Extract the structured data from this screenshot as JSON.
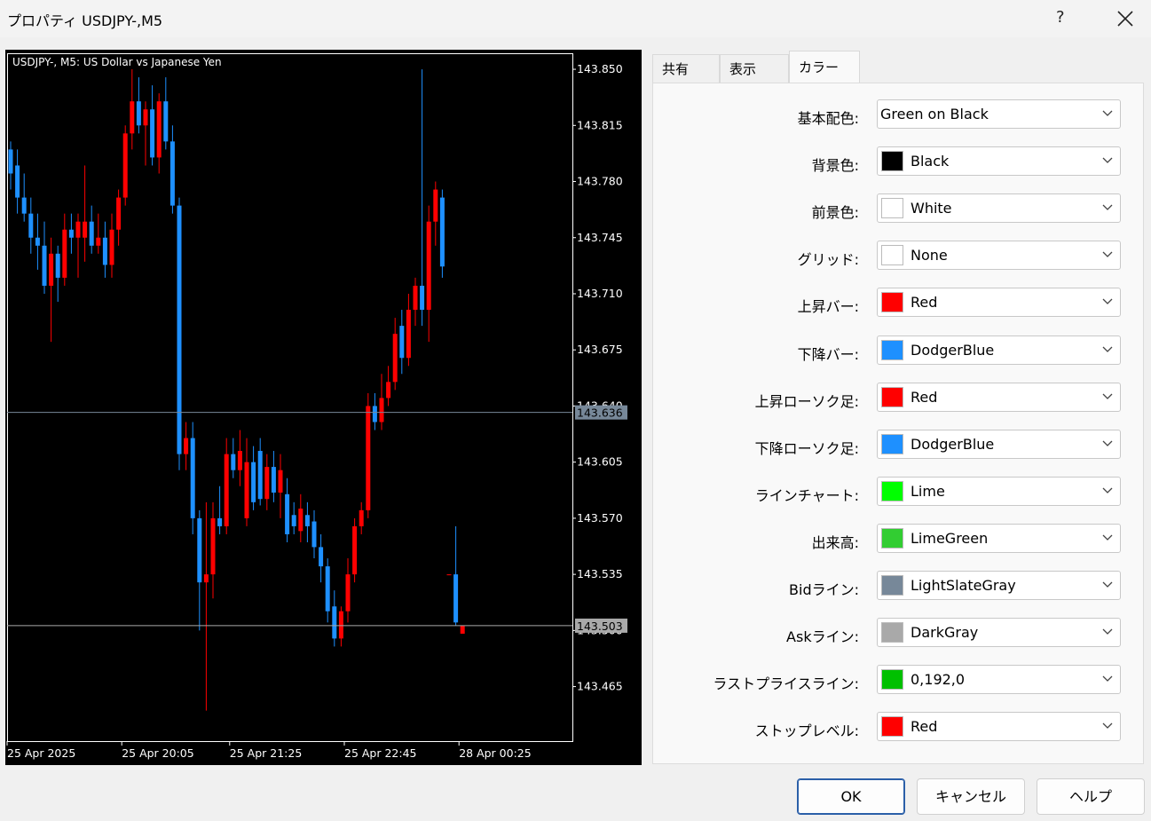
{
  "window": {
    "title": "プロパティ USDJPY-,M5",
    "help": "?"
  },
  "chart_data": {
    "type": "candlestick",
    "title": "USDJPY-, M5:  US Dollar vs Japanese Yen",
    "categories": [
      "25 Apr 2025",
      null,
      null,
      null,
      null,
      null,
      null,
      null,
      null,
      null,
      null,
      null,
      null,
      null,
      null,
      null,
      null,
      "25 Apr 20:05",
      null,
      null,
      null,
      null,
      null,
      null,
      null,
      null,
      null,
      null,
      null,
      null,
      null,
      null,
      null,
      "25 Apr 21:25",
      null,
      null,
      null,
      null,
      null,
      null,
      null,
      null,
      null,
      null,
      null,
      null,
      null,
      null,
      null,
      null,
      "25 Apr 22:45",
      null,
      null,
      null,
      null,
      null,
      null,
      null,
      null,
      null,
      null,
      null,
      null,
      null,
      null,
      null,
      null,
      "28 Apr 00:25"
    ],
    "open": [
      143.8,
      143.79,
      143.77,
      143.76,
      143.745,
      143.74,
      143.715,
      143.735,
      143.72,
      143.75,
      143.745,
      143.745,
      143.755,
      143.74,
      143.745,
      143.728,
      143.75,
      143.77,
      143.81,
      143.83,
      143.815,
      143.825,
      143.795,
      143.83,
      143.805,
      143.765,
      143.61,
      143.62,
      143.57,
      143.53,
      143.535,
      143.57,
      143.565,
      143.61,
      143.6,
      143.57,
      143.605,
      143.612,
      143.582,
      143.602,
      143.586,
      143.585,
      143.572,
      143.562,
      143.572,
      143.568,
      143.552,
      143.54,
      143.515,
      143.495,
      143.512,
      143.535,
      143.565,
      143.575,
      143.64,
      143.63,
      143.645,
      143.655,
      143.69,
      143.67,
      143.7,
      143.715,
      143.7,
      143.755,
      143.77,
      143.535,
      143.535,
      143.498
    ],
    "high": [
      143.805,
      143.8,
      143.785,
      143.77,
      143.76,
      143.755,
      143.745,
      143.74,
      143.76,
      143.76,
      143.76,
      143.79,
      143.765,
      143.76,
      143.755,
      143.76,
      143.775,
      143.815,
      143.85,
      143.845,
      143.83,
      143.84,
      143.835,
      143.845,
      143.815,
      143.77,
      143.63,
      143.63,
      143.575,
      143.58,
      143.58,
      143.59,
      143.62,
      143.62,
      143.625,
      143.62,
      143.615,
      143.62,
      143.61,
      143.612,
      143.61,
      143.595,
      143.58,
      143.585,
      143.58,
      143.575,
      143.56,
      143.545,
      143.525,
      143.515,
      143.545,
      143.57,
      143.58,
      143.648,
      143.648,
      143.66,
      143.665,
      143.695,
      143.7,
      143.71,
      143.72,
      143.85,
      143.765,
      143.78,
      143.775,
      143.535,
      143.565,
      143.503
    ],
    "low": [
      143.775,
      143.76,
      143.755,
      143.735,
      143.725,
      143.71,
      143.68,
      143.705,
      143.715,
      143.735,
      143.72,
      143.73,
      143.735,
      143.735,
      143.72,
      143.72,
      143.74,
      143.765,
      143.8,
      143.81,
      143.79,
      143.79,
      143.785,
      143.8,
      143.76,
      143.6,
      143.6,
      143.56,
      143.5,
      143.45,
      143.52,
      143.56,
      143.56,
      143.595,
      143.59,
      143.565,
      143.575,
      143.578,
      143.575,
      143.58,
      143.57,
      143.555,
      143.56,
      143.555,
      143.555,
      143.545,
      143.53,
      143.505,
      143.49,
      143.49,
      143.505,
      143.53,
      143.56,
      143.57,
      143.625,
      143.625,
      143.64,
      143.65,
      143.66,
      143.665,
      143.69,
      143.69,
      143.68,
      143.74,
      143.72,
      143.535,
      143.503,
      143.498
    ],
    "close": [
      143.785,
      143.77,
      143.76,
      143.745,
      143.74,
      143.715,
      143.735,
      143.72,
      143.75,
      143.745,
      143.755,
      143.755,
      143.74,
      143.745,
      143.728,
      143.75,
      143.77,
      143.81,
      143.83,
      143.815,
      143.825,
      143.795,
      143.83,
      143.805,
      143.765,
      143.61,
      143.62,
      143.57,
      143.53,
      143.535,
      143.57,
      143.565,
      143.61,
      143.6,
      143.612,
      143.605,
      143.58,
      143.582,
      143.602,
      143.586,
      143.6,
      143.56,
      143.565,
      143.576,
      143.565,
      143.552,
      143.54,
      143.512,
      143.495,
      143.512,
      143.535,
      143.565,
      143.575,
      143.64,
      143.63,
      143.645,
      143.655,
      143.685,
      143.67,
      143.7,
      143.715,
      143.7,
      143.755,
      143.775,
      143.727,
      143.535,
      143.505,
      143.503
    ],
    "up_color": "#ff0000",
    "down_color": "#1e90ff",
    "ylim": [
      143.431,
      143.86
    ],
    "yticks": [
      {
        "value": 143.85,
        "label": "143.850"
      },
      {
        "value": 143.815,
        "label": "143.815"
      },
      {
        "value": 143.78,
        "label": "143.780"
      },
      {
        "value": 143.745,
        "label": "143.745"
      },
      {
        "value": 143.71,
        "label": "143.710"
      },
      {
        "value": 143.675,
        "label": "143.675"
      },
      {
        "value": 143.64,
        "label": "143.640"
      },
      {
        "value": 143.605,
        "label": "143.605"
      },
      {
        "value": 143.57,
        "label": "143.570"
      },
      {
        "value": 143.535,
        "label": "143.535"
      },
      {
        "value": 143.5,
        "label": "143.500"
      },
      {
        "value": 143.465,
        "label": "143.465"
      }
    ],
    "grid": false,
    "bid": 143.636,
    "bid_color": "#778899",
    "ask": 143.503,
    "ask_color": "#a9a9a9"
  },
  "tabs": [
    {
      "label": "共有",
      "selected": false
    },
    {
      "label": "表示",
      "selected": false
    },
    {
      "label": "カラー",
      "selected": true
    }
  ],
  "rows": [
    {
      "label": "基本配色:",
      "value": "Green on Black"
    },
    {
      "label": "背景色:",
      "value": "Black",
      "swatch": "#000000"
    },
    {
      "label": "前景色:",
      "value": "White",
      "swatch": "#ffffff"
    },
    {
      "label": "グリッド:",
      "value": "None",
      "swatch": "#ffffff"
    },
    {
      "label": "上昇バー:",
      "value": "Red",
      "swatch": "#ff0000"
    },
    {
      "label": "下降バー:",
      "value": "DodgerBlue",
      "swatch": "#1e90ff"
    },
    {
      "label": "上昇ローソク足:",
      "value": "Red",
      "swatch": "#ff0000"
    },
    {
      "label": "下降ローソク足:",
      "value": "DodgerBlue",
      "swatch": "#1e90ff"
    },
    {
      "label": "ラインチャート:",
      "value": "Lime",
      "swatch": "#00ff00"
    },
    {
      "label": "出来高:",
      "value": "LimeGreen",
      "swatch": "#32cd32"
    },
    {
      "label": "Bidライン:",
      "value": "LightSlateGray",
      "swatch": "#778899"
    },
    {
      "label": "Askライン:",
      "value": "DarkGray",
      "swatch": "#a9a9a9"
    },
    {
      "label": "ラストプライスライン:",
      "value": "0,192,0",
      "swatch": "#00c000"
    },
    {
      "label": "ストップレベル:",
      "value": "Red",
      "swatch": "#ff0000"
    }
  ],
  "buttons": [
    "OK",
    "キャンセル",
    "ヘルプ"
  ]
}
